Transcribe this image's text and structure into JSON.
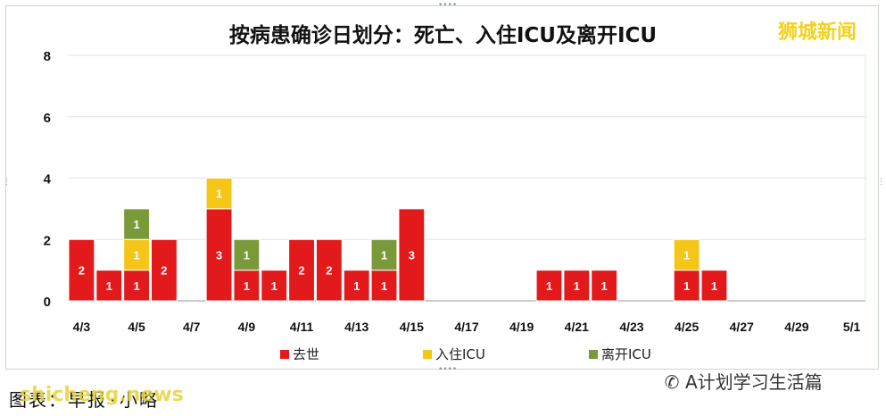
{
  "brand_logo": "狮城新闻",
  "footer": {
    "source": "图表：早报·小略",
    "wechat_account": "A计划学习生活篇",
    "watermark": "shicheng.news"
  },
  "chart_data": {
    "type": "bar",
    "stacked": true,
    "title": "按病患确诊日划分：死亡、入住ICU及离开ICU",
    "xlabel": "",
    "ylabel": "",
    "ylim": [
      0,
      8
    ],
    "yticks": [
      0,
      2,
      4,
      6,
      8
    ],
    "grid": true,
    "legend_position": "bottom",
    "categories": [
      "4/3",
      "4/4",
      "4/5",
      "4/6",
      "4/7",
      "4/8",
      "4/9",
      "4/10",
      "4/11",
      "4/12",
      "4/13",
      "4/14",
      "4/15",
      "4/16",
      "4/17",
      "4/18",
      "4/19",
      "4/20",
      "4/21",
      "4/22",
      "4/23",
      "4/24",
      "4/25",
      "4/26",
      "4/27",
      "4/28",
      "4/29",
      "4/30",
      "5/1"
    ],
    "tick_labels": [
      "4/3",
      "4/5",
      "4/7",
      "4/9",
      "4/11",
      "4/13",
      "4/15",
      "4/17",
      "4/19",
      "4/21",
      "4/23",
      "4/25",
      "4/27",
      "4/29",
      "5/1"
    ],
    "series": [
      {
        "name": "去世",
        "color": "#e31a1c",
        "values": [
          2,
          1,
          1,
          2,
          0,
          3,
          1,
          1,
          2,
          2,
          1,
          1,
          3,
          0,
          0,
          0,
          0,
          1,
          1,
          1,
          0,
          0,
          1,
          1,
          0,
          0,
          0,
          0,
          0
        ]
      },
      {
        "name": "入住ICU",
        "color": "#f5c518",
        "values": [
          0,
          0,
          1,
          0,
          0,
          1,
          0,
          0,
          0,
          0,
          0,
          0,
          0,
          0,
          0,
          0,
          0,
          0,
          0,
          0,
          0,
          0,
          1,
          0,
          0,
          0,
          0,
          0,
          0
        ]
      },
      {
        "name": "离开ICU",
        "color": "#7a9a3a",
        "values": [
          0,
          0,
          1,
          0,
          0,
          0,
          1,
          0,
          0,
          0,
          0,
          1,
          0,
          0,
          0,
          0,
          0,
          0,
          0,
          0,
          0,
          0,
          0,
          0,
          0,
          0,
          0,
          0,
          0
        ]
      }
    ]
  }
}
